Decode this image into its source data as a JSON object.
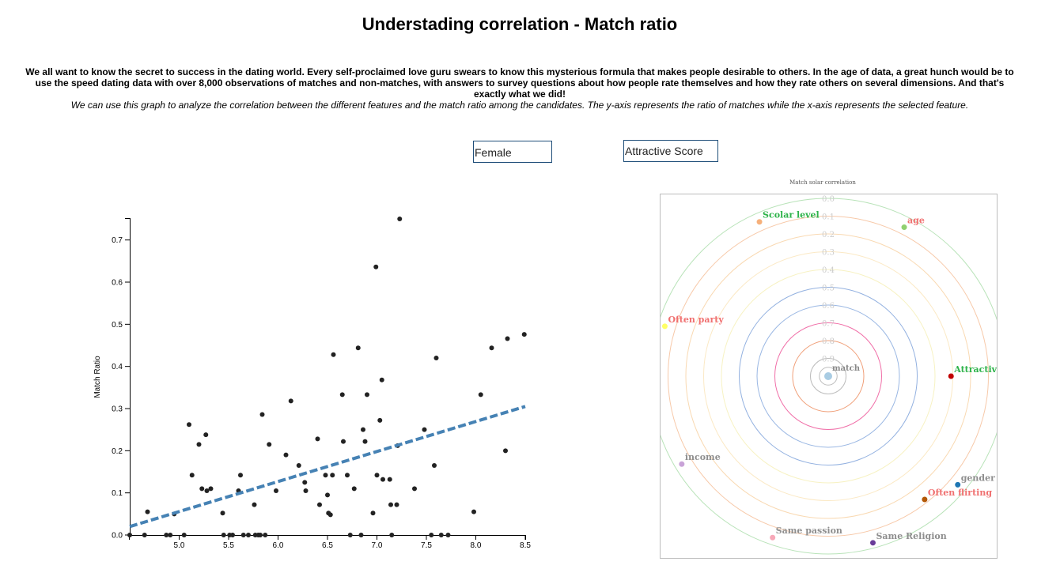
{
  "header": {
    "title": "Understading correlation - Match ratio",
    "intro": "We all want to know the secret to success in the dating world. Every self-proclaimed love guru swears to know this mysterious formula that makes people desirable to others. In the age of data, a great hunch would be to use the speed dating data with over 8,000 observations of matches and non-matches, with answers to survey questions about how people rate themselves and how they rate others on several dimensions. And that's exactly what we did!",
    "note": "We can use this graph to analyze the correlation between the different features and the match ratio among the candidates. The y-axis represents the ratio of matches while the x-axis represents the selected feature."
  },
  "controls": {
    "gender_value": "Female",
    "feature_value": "Attractive Score"
  },
  "chart_data": [
    {
      "type": "scatter",
      "title": "",
      "xlabel": "",
      "ylabel": "Match Ratio",
      "xlim": [
        4.5,
        8.5
      ],
      "ylim": [
        0,
        0.75
      ],
      "x_ticks": [
        "5.0",
        "5.5",
        "6.0",
        "6.5",
        "7.0",
        "7.5",
        "8.0",
        "8.5"
      ],
      "y_ticks": [
        "0.0",
        "0.1",
        "0.2",
        "0.3",
        "0.4",
        "0.5",
        "0.6",
        "0.7"
      ],
      "point_color": "#222222",
      "trendline": {
        "color": "#4682b4",
        "style": "dashed",
        "x": [
          4.5,
          8.5
        ],
        "y": [
          0.02,
          0.305
        ]
      },
      "points": [
        [
          4.5,
          0
        ],
        [
          4.65,
          0
        ],
        [
          4.68,
          0.055
        ],
        [
          4.87,
          0
        ],
        [
          4.91,
          0
        ],
        [
          4.95,
          0.05
        ],
        [
          5.05,
          0
        ],
        [
          5.1,
          0.262
        ],
        [
          5.13,
          0.142
        ],
        [
          5.2,
          0.215
        ],
        [
          5.23,
          0.11
        ],
        [
          5.27,
          0.238
        ],
        [
          5.28,
          0.105
        ],
        [
          5.32,
          0.11
        ],
        [
          5.44,
          0.052
        ],
        [
          5.45,
          0
        ],
        [
          5.51,
          0
        ],
        [
          5.54,
          0
        ],
        [
          5.6,
          0.105
        ],
        [
          5.62,
          0.142
        ],
        [
          5.65,
          0
        ],
        [
          5.7,
          0
        ],
        [
          5.76,
          0.072
        ],
        [
          5.77,
          0
        ],
        [
          5.8,
          0
        ],
        [
          5.82,
          0
        ],
        [
          5.84,
          0.286
        ],
        [
          5.87,
          0
        ],
        [
          5.91,
          0.215
        ],
        [
          5.98,
          0.105
        ],
        [
          6.08,
          0.19
        ],
        [
          6.13,
          0.318
        ],
        [
          6.21,
          0.165
        ],
        [
          6.27,
          0.125
        ],
        [
          6.28,
          0.105
        ],
        [
          6.4,
          0.228
        ],
        [
          6.42,
          0.072
        ],
        [
          6.48,
          0.142
        ],
        [
          6.5,
          0.095
        ],
        [
          6.51,
          0.052
        ],
        [
          6.53,
          0.048
        ],
        [
          6.55,
          0.142
        ],
        [
          6.56,
          0.428
        ],
        [
          6.65,
          0.333
        ],
        [
          6.66,
          0.222
        ],
        [
          6.7,
          0.142
        ],
        [
          6.73,
          0
        ],
        [
          6.77,
          0.11
        ],
        [
          6.81,
          0.444
        ],
        [
          6.84,
          0
        ],
        [
          6.86,
          0.25
        ],
        [
          6.88,
          0.222
        ],
        [
          6.9,
          0.333
        ],
        [
          6.96,
          0.052
        ],
        [
          6.99,
          0.636
        ],
        [
          7.0,
          0.142
        ],
        [
          7.03,
          0.272
        ],
        [
          7.05,
          0.368
        ],
        [
          7.06,
          0.132
        ],
        [
          7.13,
          0.132
        ],
        [
          7.14,
          0.072
        ],
        [
          7.15,
          0
        ],
        [
          7.2,
          0.072
        ],
        [
          7.21,
          0.212
        ],
        [
          7.23,
          0.75
        ],
        [
          7.38,
          0.11
        ],
        [
          7.48,
          0.25
        ],
        [
          7.55,
          0
        ],
        [
          7.58,
          0.165
        ],
        [
          7.6,
          0.42
        ],
        [
          7.65,
          0
        ],
        [
          7.72,
          0
        ],
        [
          7.98,
          0.055
        ],
        [
          8.05,
          0.333
        ],
        [
          8.16,
          0.444
        ],
        [
          8.3,
          0.2
        ],
        [
          8.32,
          0.466
        ],
        [
          8.49,
          0.476
        ]
      ]
    },
    {
      "type": "radial",
      "title": "Match solar correlation",
      "center_label": "match",
      "center_color": "#a9cce3",
      "radial_ticks": [
        "0.0",
        "0.1",
        "0.2",
        "0.3",
        "0.4",
        "0.5",
        "0.6",
        "0.7",
        "0.8",
        "0.9"
      ],
      "rings": [
        {
          "value": 0.0,
          "color": "#b9e3b9"
        },
        {
          "value": 0.1,
          "color": "#f7c9a9"
        },
        {
          "value": 0.2,
          "color": "#f9d9b2"
        },
        {
          "value": 0.3,
          "color": "#fbe9c5"
        },
        {
          "value": 0.4,
          "color": "#f7f2c3"
        },
        {
          "value": 0.5,
          "color": "#93b1e0"
        },
        {
          "value": 0.6,
          "color": "#9ab7e3"
        },
        {
          "value": 0.7,
          "color": "#f06fa8"
        },
        {
          "value": 0.8,
          "color": "#f0a07a"
        },
        {
          "value": 0.9,
          "color": "#bdbdbd"
        },
        {
          "value": 0.95,
          "color": "#bdbdbd"
        }
      ],
      "features": [
        {
          "name": "age",
          "corr": 0.06,
          "angle": 63,
          "dot": "#90d070",
          "label_color": "#f07070"
        },
        {
          "name": "Scolar level",
          "corr": 0.05,
          "angle": 114,
          "dot": "#f6b07b",
          "label_color": "#2eb34a"
        },
        {
          "name": "Often party",
          "corr": 0.04,
          "angle": 163,
          "dot": "#ffff66",
          "label_color": "#f07070"
        },
        {
          "name": "Attractive Score",
          "corr": 0.31,
          "angle": 0,
          "dot": "#c00000",
          "label_color": "#2eb34a"
        },
        {
          "name": "income",
          "corr": 0.04,
          "angle": 211,
          "dot": "#c9a3d8",
          "label_color": "#8e8e8e"
        },
        {
          "name": "Often flirting",
          "corr": 0.12,
          "angle": 308,
          "dot": "#b35806",
          "label_color": "#f07070"
        },
        {
          "name": "gender",
          "corr": 0.05,
          "angle": 320,
          "dot": "#1f77b4",
          "label_color": "#8e8e8e"
        },
        {
          "name": "Same passion",
          "corr": 0.04,
          "angle": 251,
          "dot": "#f7a8b8",
          "label_color": "#8e8e8e"
        },
        {
          "name": "Same Religion",
          "corr": 0.03,
          "angle": 285,
          "dot": "#6a3d9a",
          "label_color": "#8e8e8e"
        }
      ]
    }
  ]
}
